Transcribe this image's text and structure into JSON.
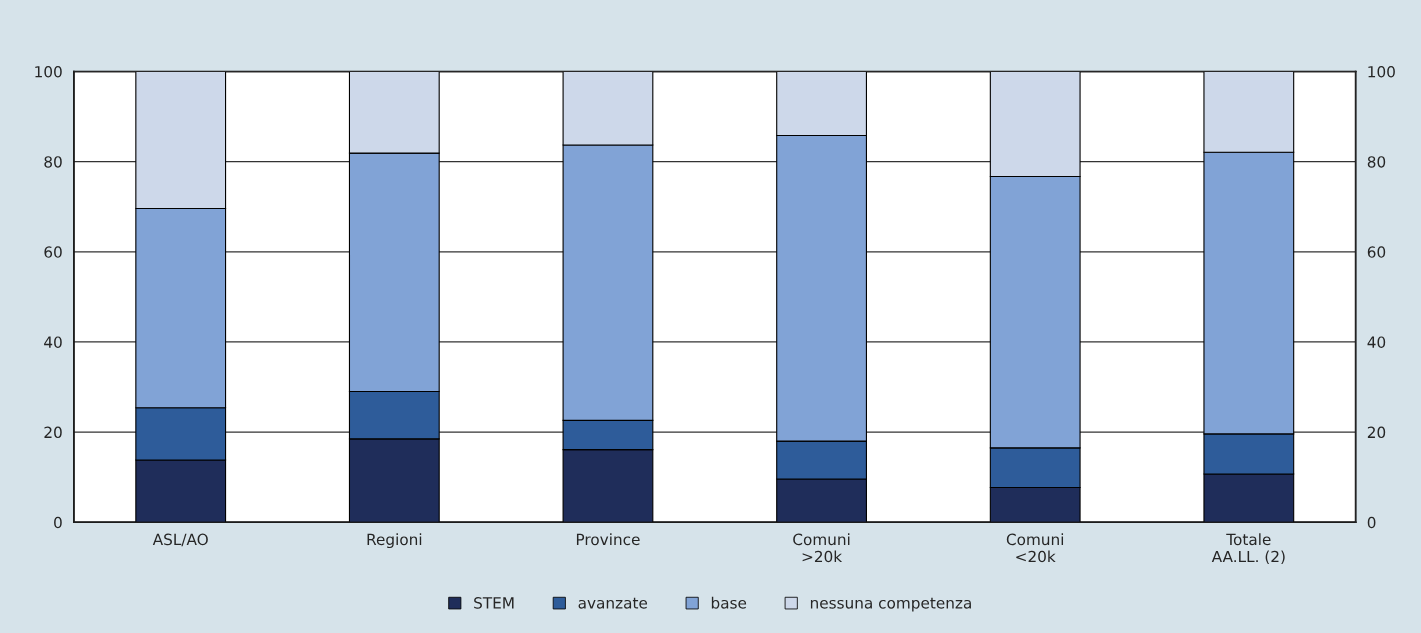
{
  "chart_data": {
    "type": "bar",
    "stacked": true,
    "categories": [
      "ASL/AO",
      "Regioni",
      "Province",
      "Comuni\n>20k",
      "Comuni\n<20k",
      "Totale\nAA.LL. (2)"
    ],
    "series": [
      {
        "name": "STEM",
        "color": "#1f2d5a",
        "values": [
          13.8,
          18.5,
          16.1,
          9.6,
          7.7,
          10.7
        ]
      },
      {
        "name": "avanzate",
        "color": "#2e5c9a",
        "values": [
          11.6,
          10.5,
          6.5,
          8.4,
          8.8,
          8.9
        ]
      },
      {
        "name": "base",
        "color": "#81a3d6",
        "values": [
          44.2,
          52.9,
          61.1,
          67.8,
          60.2,
          62.5
        ]
      },
      {
        "name": "nessuna competenza",
        "color": "#cdd8ea",
        "values": [
          30.4,
          18.1,
          16.3,
          14.2,
          23.3,
          17.9
        ]
      }
    ],
    "ylim": [
      0,
      100
    ],
    "yticks": [
      0,
      20,
      40,
      60,
      80,
      100
    ],
    "y2lim": [
      0,
      100
    ],
    "y2ticks": [
      0,
      20,
      40,
      60,
      80,
      100
    ],
    "grid": "y",
    "legend": "bottom"
  }
}
